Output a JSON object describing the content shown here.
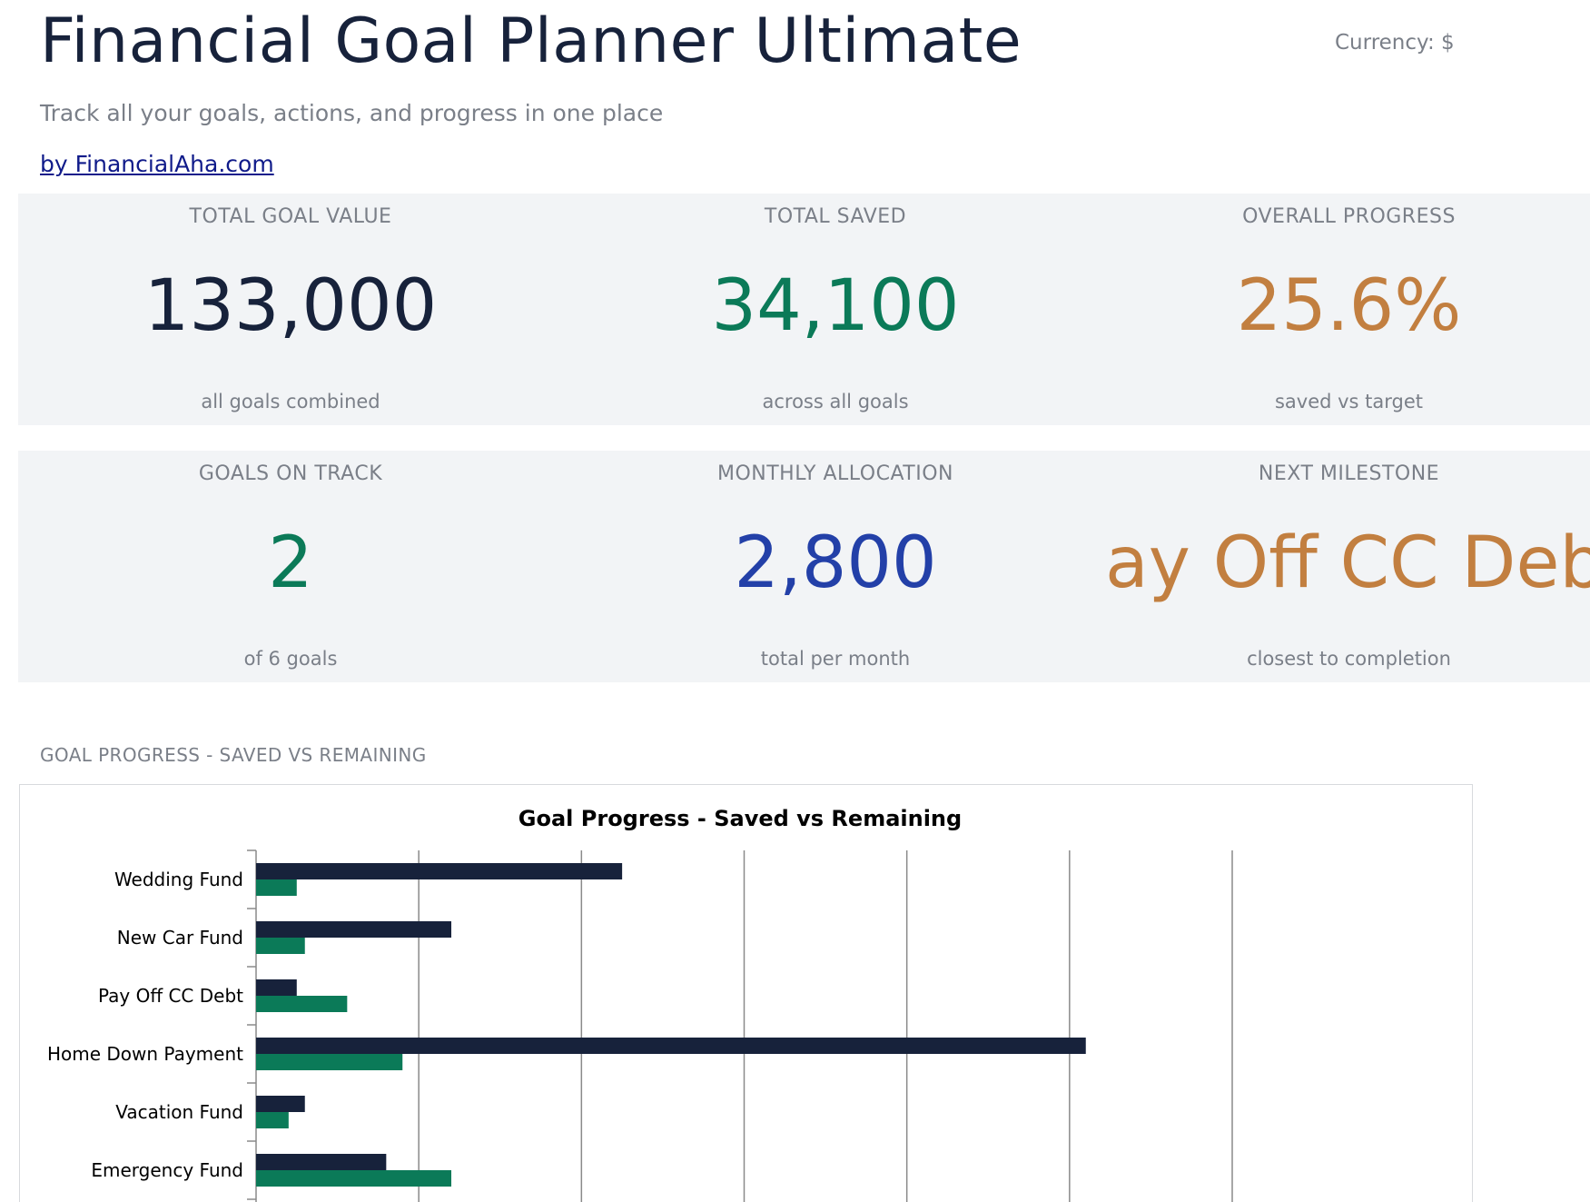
{
  "header": {
    "title": "Financial Goal Planner Ultimate",
    "currency": "Currency: $",
    "subtitle": "Track all your goals, actions, and progress in one place",
    "byline": "by FinancialAha.com"
  },
  "kpis": {
    "total_goal_value": {
      "label": "TOTAL GOAL VALUE",
      "value": "133,000",
      "caption": "all goals combined",
      "color": "#17223b"
    },
    "total_saved": {
      "label": "TOTAL SAVED",
      "value": "34,100",
      "caption": "across all goals",
      "color": "#0b7a58"
    },
    "overall_progress": {
      "label": "OVERALL PROGRESS",
      "value": "25.6%",
      "caption": "saved vs target",
      "color": "#c27f40"
    },
    "goals_on_track": {
      "label": "GOALS ON TRACK",
      "value": "2",
      "caption": "of 6 goals",
      "color": "#0b7a58"
    },
    "monthly_allocation": {
      "label": "MONTHLY ALLOCATION",
      "value": "2,800",
      "caption": "total per month",
      "color": "#2340a8"
    },
    "next_milestone": {
      "label": "NEXT MILESTONE",
      "value": "Pay Off CC Debt",
      "caption": "closest to completion",
      "color": "#c27f40"
    }
  },
  "chart_section": {
    "label": "GOAL PROGRESS - SAVED VS REMAINING"
  },
  "chart_data": {
    "type": "bar",
    "orientation": "horizontal",
    "stacked": false,
    "title": "Goal Progress - Saved vs Remaining",
    "categories": [
      "Wedding Fund",
      "New Car Fund",
      "Pay Off CC Debt",
      "Home Down Payment",
      "Vacation Fund",
      "Emergency Fund"
    ],
    "series": [
      {
        "values": [
          22500,
          12000,
          2500,
          51000,
          3000,
          8000
        ],
        "color": "#17223b"
      },
      {
        "values": [
          2500,
          3000,
          5600,
          9000,
          2000,
          12000
        ],
        "color": "#0b7a58"
      }
    ],
    "xlim": [
      0,
      60000
    ],
    "gridlines": true,
    "tick_labels_visible": false,
    "legend": "none"
  }
}
